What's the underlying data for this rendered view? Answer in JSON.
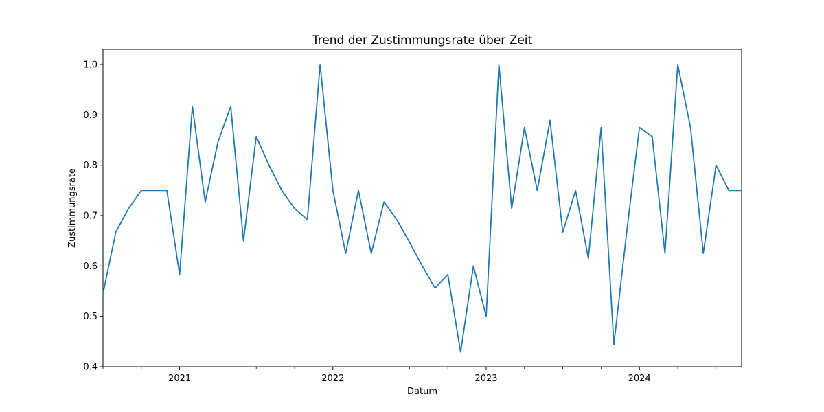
{
  "chart_data": {
    "type": "line",
    "title": "Trend der Zustimmungsrate über Zeit",
    "xlabel": "Datum",
    "ylabel": "Zustimmungsrate",
    "x_tick_labels": [
      "2021",
      "2022",
      "2023",
      "2024"
    ],
    "y_tick_labels": [
      "0.4",
      "0.5",
      "0.6",
      "0.7",
      "0.8",
      "0.9",
      "1.0"
    ],
    "xlim": [
      "2020-07",
      "2024-09"
    ],
    "ylim": [
      0.4,
      1.03
    ],
    "grid": false,
    "line_color": "#1f77b4",
    "series": [
      {
        "x": [
          "2020-07",
          "2020-08",
          "2020-09",
          "2020-10",
          "2020-11",
          "2020-12",
          "2021-01",
          "2021-02",
          "2021-03",
          "2021-04",
          "2021-05",
          "2021-06",
          "2021-07",
          "2021-08",
          "2021-09",
          "2021-10",
          "2021-11",
          "2021-12",
          "2022-01",
          "2022-02",
          "2022-03",
          "2022-04",
          "2022-05",
          "2022-06",
          "2022-07",
          "2022-08",
          "2022-09",
          "2022-10",
          "2022-11",
          "2022-12",
          "2023-01",
          "2023-02",
          "2023-03",
          "2023-04",
          "2023-05",
          "2023-06",
          "2023-07",
          "2023-08",
          "2023-09",
          "2023-10",
          "2023-11",
          "2023-12",
          "2024-01",
          "2024-02",
          "2024-03",
          "2024-04",
          "2024-05",
          "2024-06",
          "2024-07",
          "2024-08",
          "2024-09"
        ],
        "values": [
          0.545,
          0.667,
          0.714,
          0.75,
          0.75,
          0.75,
          0.583,
          0.917,
          0.727,
          0.846,
          0.917,
          0.65,
          0.857,
          0.8,
          0.75,
          0.714,
          0.692,
          1.0,
          0.75,
          0.625,
          0.75,
          0.625,
          0.727,
          0.692,
          0.647,
          0.6,
          0.556,
          0.583,
          0.429,
          0.6,
          0.5,
          1.0,
          0.714,
          0.875,
          0.75,
          0.889,
          0.667,
          0.75,
          0.615,
          0.875,
          0.444,
          0.667,
          0.875,
          0.857,
          0.625,
          1.0,
          0.875,
          0.625,
          0.8,
          0.75,
          0.75
        ]
      }
    ]
  }
}
